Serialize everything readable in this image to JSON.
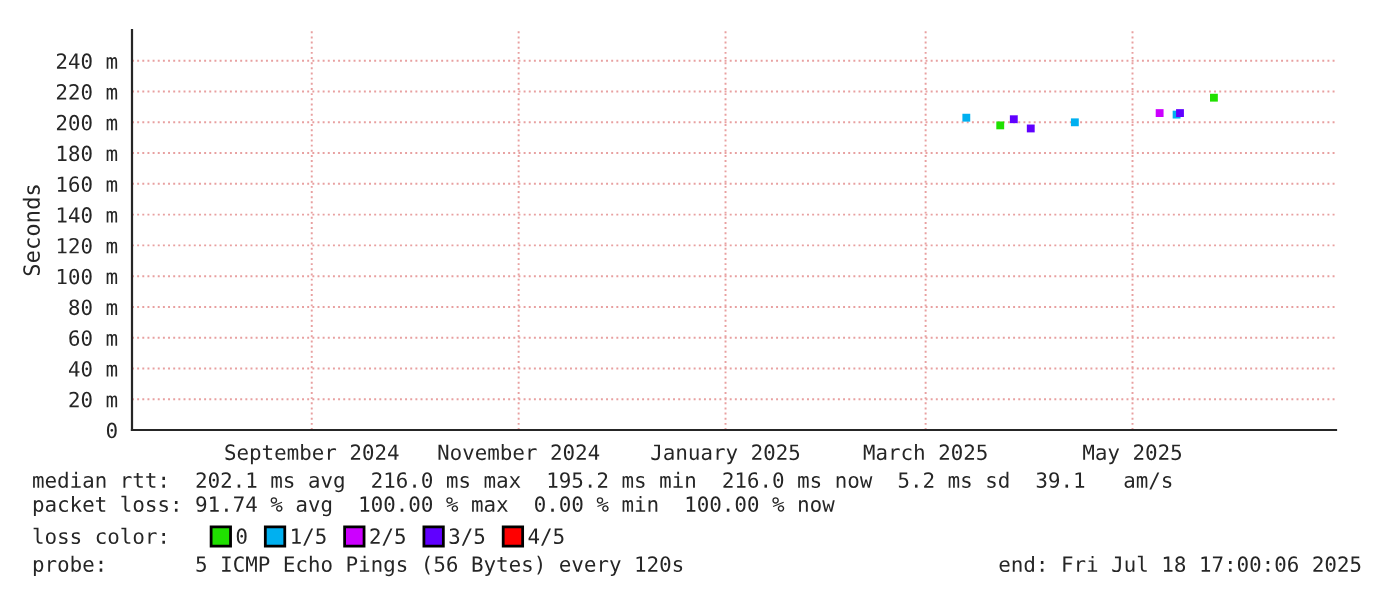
{
  "chart_data": {
    "type": "scatter",
    "ylabel": "Seconds",
    "legend_title": "loss color:",
    "legend": "bottom",
    "marker": "square",
    "grid": true,
    "xlim": [
      "2024-07-24",
      "2025-07-14"
    ],
    "xticks": [
      {
        "value": "2024-09-15",
        "label": "September 2024"
      },
      {
        "value": "2024-11-15",
        "label": "November 2024"
      },
      {
        "value": "2025-01-15",
        "label": "January 2025"
      },
      {
        "value": "2025-03-15",
        "label": "March 2025"
      },
      {
        "value": "2025-05-15",
        "label": "May 2025"
      }
    ],
    "ylim": [
      0,
      260
    ],
    "yticks": [
      0,
      {
        "value": 20,
        "label": "20 m"
      },
      {
        "value": 40,
        "label": "40 m"
      },
      {
        "value": 60,
        "label": "60 m"
      },
      {
        "value": 80,
        "label": "80 m"
      },
      {
        "value": 100,
        "label": "100 m"
      },
      {
        "value": 120,
        "label": "120 m"
      },
      {
        "value": 140,
        "label": "140 m"
      },
      {
        "value": 160,
        "label": "160 m"
      },
      {
        "value": 180,
        "label": "180 m"
      },
      {
        "value": 200,
        "label": "200 m"
      },
      {
        "value": 220,
        "label": "220 m"
      },
      {
        "value": 240,
        "label": "240 m"
      }
    ],
    "series": [
      {
        "name": "0",
        "color": "#20e000",
        "x": [
          "2025-04-06",
          "2025-06-08"
        ],
        "values": [
          198,
          216
        ]
      },
      {
        "name": "1/5",
        "color": "#00b0f0",
        "x": [
          "2025-03-27",
          "2025-04-28",
          "2025-05-28"
        ],
        "values": [
          203,
          200,
          205
        ]
      },
      {
        "name": "2/5",
        "color": "#cc00ff",
        "x": [
          "2025-05-23"
        ],
        "values": [
          206
        ]
      },
      {
        "name": "3/5",
        "color": "#6000ff",
        "x": [
          "2025-04-10",
          "2025-04-15",
          "2025-05-29"
        ],
        "values": [
          202,
          196,
          206
        ]
      },
      {
        "name": "4/5",
        "color": "#ff0000"
      }
    ],
    "annotations": [
      "median rtt:  202.1 ms avg  216.0 ms max  195.2 ms min  216.0 ms now  5.2 ms sd  39.1   am/s",
      "packet loss: 91.74 % avg  100.00 % max  0.00 % min  100.00 % now",
      "probe:       5 ICMP Echo Pings (56 Bytes) every 120s",
      "end: Fri Jul 18 17:00:06 2025"
    ]
  }
}
